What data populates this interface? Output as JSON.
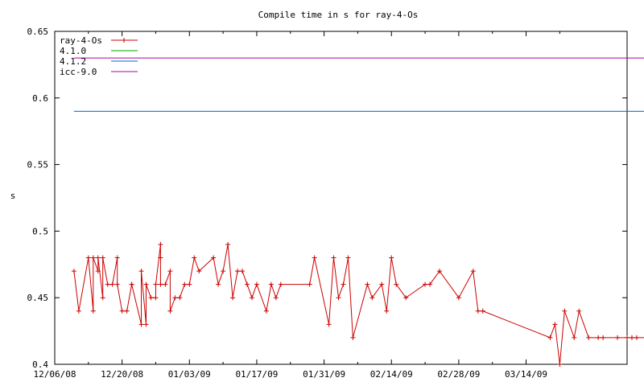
{
  "chart_data": {
    "type": "line",
    "title": "Compile time in s for ray-4-Os",
    "xlabel": "",
    "ylabel": "s",
    "x_type": "date",
    "xlim": [
      "2008-12-06",
      "2009-04-04"
    ],
    "ylim": [
      0.4,
      0.65
    ],
    "y_ticks": [
      0.4,
      0.45,
      0.5,
      0.55,
      0.6,
      0.65
    ],
    "y_tick_labels": [
      "0.4",
      "0.45",
      "0.5",
      "0.55",
      "0.6",
      "0.65"
    ],
    "x_ticks": [
      "2008-12-06",
      "2008-12-20",
      "2009-01-03",
      "2009-01-17",
      "2009-01-31",
      "2009-02-14",
      "2009-02-28",
      "2009-03-14"
    ],
    "x_tick_labels": [
      "12/06/08",
      "12/20/08",
      "01/03/09",
      "01/17/09",
      "01/31/09",
      "02/14/09",
      "02/28/09",
      "03/14/09"
    ],
    "grid": false,
    "legend_position": "top-left",
    "series": [
      {
        "name": "ray-4-Os",
        "color": "#cc0000",
        "marker": "plus",
        "points": [
          [
            "2008-12-10",
            0.47
          ],
          [
            "2008-12-11",
            0.44
          ],
          [
            "2008-12-13",
            0.48
          ],
          [
            "2008-12-14",
            0.44
          ],
          [
            "2008-12-14",
            0.48
          ],
          [
            "2008-12-15",
            0.47
          ],
          [
            "2008-12-15",
            0.48
          ],
          [
            "2008-12-16",
            0.45
          ],
          [
            "2008-12-16",
            0.48
          ],
          [
            "2008-12-17",
            0.46
          ],
          [
            "2008-12-18",
            0.46
          ],
          [
            "2008-12-19",
            0.48
          ],
          [
            "2008-12-19",
            0.46
          ],
          [
            "2008-12-20",
            0.44
          ],
          [
            "2008-12-21",
            0.44
          ],
          [
            "2008-12-22",
            0.46
          ],
          [
            "2008-12-22",
            0.46
          ],
          [
            "2008-12-24",
            0.43
          ],
          [
            "2008-12-24",
            0.47
          ],
          [
            "2008-12-25",
            0.43
          ],
          [
            "2008-12-25",
            0.46
          ],
          [
            "2008-12-26",
            0.45
          ],
          [
            "2008-12-27",
            0.45
          ],
          [
            "2008-12-27",
            0.46
          ],
          [
            "2008-12-28",
            0.49
          ],
          [
            "2008-12-28",
            0.48
          ],
          [
            "2008-12-28",
            0.46
          ],
          [
            "2008-12-29",
            0.46
          ],
          [
            "2008-12-30",
            0.47
          ],
          [
            "2008-12-30",
            0.44
          ],
          [
            "2008-12-31",
            0.45
          ],
          [
            "2009-01-01",
            0.45
          ],
          [
            "2009-01-02",
            0.46
          ],
          [
            "2009-01-03",
            0.46
          ],
          [
            "2009-01-04",
            0.48
          ],
          [
            "2009-01-05",
            0.47
          ],
          [
            "2009-01-08",
            0.48
          ],
          [
            "2009-01-09",
            0.46
          ],
          [
            "2009-01-10",
            0.47
          ],
          [
            "2009-01-11",
            0.49
          ],
          [
            "2009-01-12",
            0.45
          ],
          [
            "2009-01-13",
            0.47
          ],
          [
            "2009-01-14",
            0.47
          ],
          [
            "2009-01-15",
            0.46
          ],
          [
            "2009-01-16",
            0.45
          ],
          [
            "2009-01-17",
            0.46
          ],
          [
            "2009-01-19",
            0.44
          ],
          [
            "2009-01-20",
            0.46
          ],
          [
            "2009-01-21",
            0.45
          ],
          [
            "2009-01-22",
            0.46
          ],
          [
            "2009-01-28",
            0.46
          ],
          [
            "2009-01-29",
            0.48
          ],
          [
            "2009-02-01",
            0.43
          ],
          [
            "2009-02-02",
            0.48
          ],
          [
            "2009-02-03",
            0.45
          ],
          [
            "2009-02-04",
            0.46
          ],
          [
            "2009-02-05",
            0.48
          ],
          [
            "2009-02-06",
            0.42
          ],
          [
            "2009-02-09",
            0.46
          ],
          [
            "2009-02-10",
            0.45
          ],
          [
            "2009-02-12",
            0.46
          ],
          [
            "2009-02-13",
            0.44
          ],
          [
            "2009-02-14",
            0.48
          ],
          [
            "2009-02-15",
            0.46
          ],
          [
            "2009-02-17",
            0.45
          ],
          [
            "2009-02-21",
            0.46
          ],
          [
            "2009-02-22",
            0.46
          ],
          [
            "2009-02-24",
            0.47
          ],
          [
            "2009-02-28",
            0.45
          ],
          [
            "2009-03-03",
            0.47
          ],
          [
            "2009-03-04",
            0.44
          ],
          [
            "2009-03-05",
            0.44
          ],
          [
            "2009-03-19",
            0.42
          ],
          [
            "2009-03-20",
            0.43
          ],
          [
            "2009-03-21",
            0.4
          ],
          [
            "2009-03-22",
            0.44
          ],
          [
            "2009-03-24",
            0.42
          ],
          [
            "2009-03-25",
            0.44
          ],
          [
            "2009-03-27",
            0.42
          ],
          [
            "2009-03-29",
            0.42
          ],
          [
            "2009-03-30",
            0.42
          ],
          [
            "2009-04-02",
            0.42
          ],
          [
            "2009-04-04",
            0.42
          ],
          [
            "2009-04-05",
            0.42
          ],
          [
            "2009-04-06",
            0.42
          ],
          [
            "2009-04-08",
            0.42
          ],
          [
            "2009-04-09",
            0.45
          ],
          [
            "2009-04-10",
            0.42
          ]
        ]
      },
      {
        "name": "4.1.0",
        "color": "#00aa00",
        "points": []
      },
      {
        "name": "4.1.2",
        "color": "#0066cc",
        "points": [
          [
            "2008-12-10",
            0.59
          ],
          [
            "2009-04-10",
            0.59
          ]
        ]
      },
      {
        "name": "icc-9.0",
        "color": "#aa00aa",
        "points": [
          [
            "2008-12-10",
            0.63
          ],
          [
            "2009-04-10",
            0.63
          ]
        ]
      }
    ]
  }
}
